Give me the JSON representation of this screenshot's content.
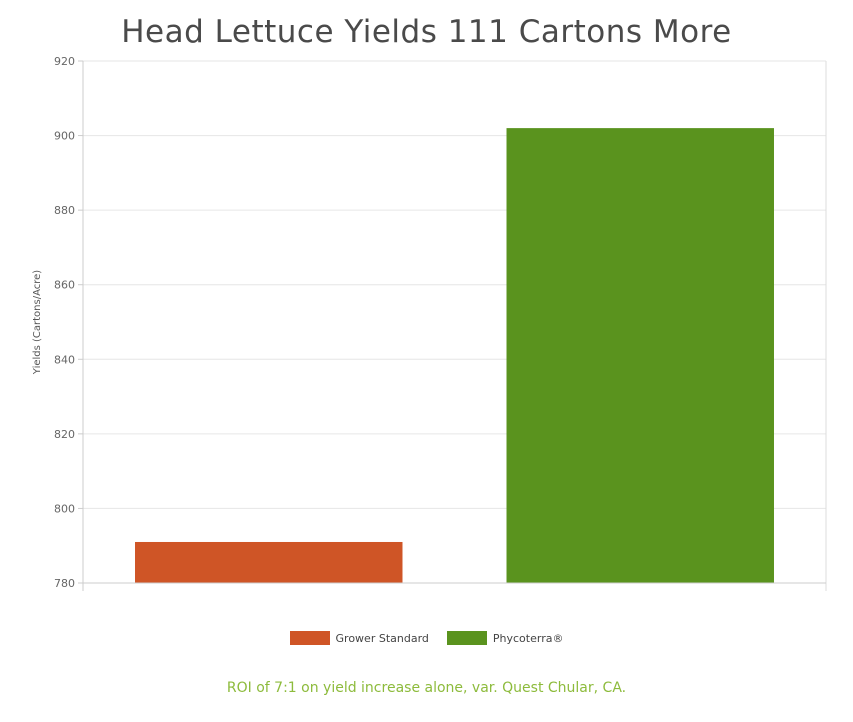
{
  "chart_data": {
    "type": "bar",
    "title": "Head Lettuce Yields 111 Cartons More",
    "xlabel": "",
    "ylabel": "Yields (Cartons/Acre)",
    "categories": [
      "Grower Standard",
      "Phycoterra®"
    ],
    "values": [
      791,
      902
    ],
    "colors": [
      "#cf5526",
      "#5a931e"
    ],
    "ylim": [
      780,
      920
    ],
    "yticks": [
      780,
      800,
      820,
      840,
      860,
      880,
      900,
      920
    ],
    "grid": true,
    "legend": "bottom-center",
    "caption": "ROI of 7:1 on yield increase alone, var. Quest Chular, CA."
  }
}
